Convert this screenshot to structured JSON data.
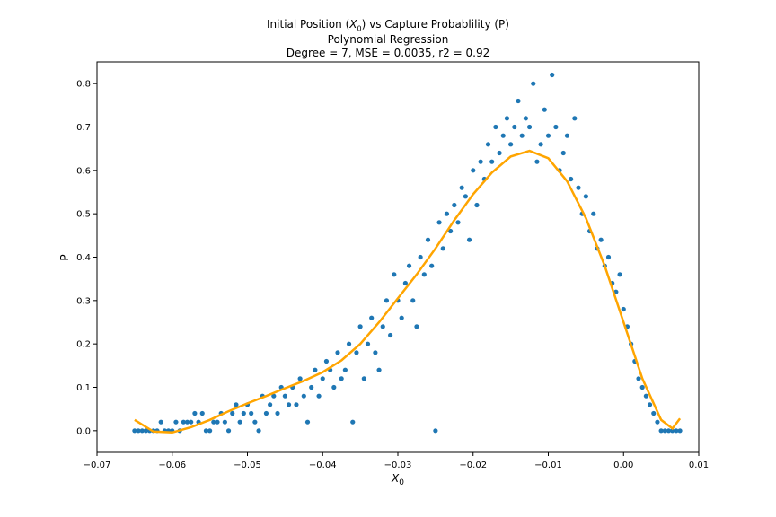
{
  "chart_data": {
    "type": "scatter",
    "title_lines": {
      "line1_prefix": "Initial Position (",
      "line1_var": "X",
      "line1_sub": "0",
      "line1_suffix": ") vs Capture Probablility (P)",
      "line2": "Polynomial Regression",
      "line3": "Degree = 7, MSE = 0.0035, r2 = 0.92"
    },
    "xlabel": {
      "var": "X",
      "sub": "0"
    },
    "ylabel": "P",
    "xlim": [
      -0.07,
      0.01
    ],
    "ylim": [
      -0.05,
      0.85
    ],
    "xticks": [
      -0.07,
      -0.06,
      -0.05,
      -0.04,
      -0.03,
      -0.02,
      -0.01,
      0.0,
      0.01
    ],
    "xtick_labels": [
      "−0.07",
      "−0.06",
      "−0.05",
      "−0.04",
      "−0.03",
      "−0.02",
      "−0.01",
      "0.00",
      "0.01"
    ],
    "yticks": [
      0.0,
      0.1,
      0.2,
      0.3,
      0.4,
      0.5,
      0.6,
      0.7,
      0.8
    ],
    "ytick_labels": [
      "0.0",
      "0.1",
      "0.2",
      "0.3",
      "0.4",
      "0.5",
      "0.6",
      "0.7",
      "0.8"
    ],
    "grid": false,
    "series": [
      {
        "kind": "scatter",
        "color": "#1f77b4",
        "points": [
          [
            -0.065,
            0.0
          ],
          [
            -0.0645,
            0.0
          ],
          [
            -0.064,
            0.0
          ],
          [
            -0.0635,
            0.0
          ],
          [
            -0.063,
            0.0
          ],
          [
            -0.0625,
            0.0
          ],
          [
            -0.062,
            0.0
          ],
          [
            -0.0615,
            0.02
          ],
          [
            -0.061,
            0.0
          ],
          [
            -0.0605,
            0.0
          ],
          [
            -0.06,
            0.0
          ],
          [
            -0.0595,
            0.02
          ],
          [
            -0.059,
            0.0
          ],
          [
            -0.0585,
            0.02
          ],
          [
            -0.058,
            0.02
          ],
          [
            -0.0575,
            0.02
          ],
          [
            -0.057,
            0.04
          ],
          [
            -0.0565,
            0.02
          ],
          [
            -0.056,
            0.04
          ],
          [
            -0.0555,
            0.0
          ],
          [
            -0.055,
            0.0
          ],
          [
            -0.0545,
            0.02
          ],
          [
            -0.054,
            0.02
          ],
          [
            -0.0535,
            0.04
          ],
          [
            -0.053,
            0.02
          ],
          [
            -0.0525,
            0.0
          ],
          [
            -0.052,
            0.04
          ],
          [
            -0.0515,
            0.06
          ],
          [
            -0.051,
            0.02
          ],
          [
            -0.0505,
            0.04
          ],
          [
            -0.05,
            0.06
          ],
          [
            -0.0495,
            0.04
          ],
          [
            -0.049,
            0.02
          ],
          [
            -0.0485,
            0.0
          ],
          [
            -0.048,
            0.08
          ],
          [
            -0.0475,
            0.04
          ],
          [
            -0.047,
            0.06
          ],
          [
            -0.0465,
            0.08
          ],
          [
            -0.046,
            0.04
          ],
          [
            -0.0455,
            0.1
          ],
          [
            -0.045,
            0.08
          ],
          [
            -0.0445,
            0.06
          ],
          [
            -0.044,
            0.1
          ],
          [
            -0.0435,
            0.06
          ],
          [
            -0.043,
            0.12
          ],
          [
            -0.0425,
            0.08
          ],
          [
            -0.042,
            0.02
          ],
          [
            -0.0415,
            0.1
          ],
          [
            -0.041,
            0.14
          ],
          [
            -0.0405,
            0.08
          ],
          [
            -0.04,
            0.12
          ],
          [
            -0.0395,
            0.16
          ],
          [
            -0.039,
            0.14
          ],
          [
            -0.0385,
            0.1
          ],
          [
            -0.038,
            0.18
          ],
          [
            -0.0375,
            0.12
          ],
          [
            -0.037,
            0.14
          ],
          [
            -0.0365,
            0.2
          ],
          [
            -0.036,
            0.02
          ],
          [
            -0.0355,
            0.18
          ],
          [
            -0.035,
            0.24
          ],
          [
            -0.0345,
            0.12
          ],
          [
            -0.034,
            0.2
          ],
          [
            -0.0335,
            0.26
          ],
          [
            -0.033,
            0.18
          ],
          [
            -0.0325,
            0.14
          ],
          [
            -0.032,
            0.24
          ],
          [
            -0.0315,
            0.3
          ],
          [
            -0.031,
            0.22
          ],
          [
            -0.0305,
            0.36
          ],
          [
            -0.03,
            0.3
          ],
          [
            -0.0295,
            0.26
          ],
          [
            -0.029,
            0.34
          ],
          [
            -0.0285,
            0.38
          ],
          [
            -0.028,
            0.3
          ],
          [
            -0.0275,
            0.24
          ],
          [
            -0.027,
            0.4
          ],
          [
            -0.0265,
            0.36
          ],
          [
            -0.026,
            0.44
          ],
          [
            -0.0255,
            0.38
          ],
          [
            -0.025,
            0.0
          ],
          [
            -0.0245,
            0.48
          ],
          [
            -0.024,
            0.42
          ],
          [
            -0.0235,
            0.5
          ],
          [
            -0.023,
            0.46
          ],
          [
            -0.0225,
            0.52
          ],
          [
            -0.022,
            0.48
          ],
          [
            -0.0215,
            0.56
          ],
          [
            -0.021,
            0.54
          ],
          [
            -0.0205,
            0.44
          ],
          [
            -0.02,
            0.6
          ],
          [
            -0.0195,
            0.52
          ],
          [
            -0.019,
            0.62
          ],
          [
            -0.0185,
            0.58
          ],
          [
            -0.018,
            0.66
          ],
          [
            -0.0175,
            0.62
          ],
          [
            -0.017,
            0.7
          ],
          [
            -0.0165,
            0.64
          ],
          [
            -0.016,
            0.68
          ],
          [
            -0.0155,
            0.72
          ],
          [
            -0.015,
            0.66
          ],
          [
            -0.0145,
            0.7
          ],
          [
            -0.014,
            0.76
          ],
          [
            -0.0135,
            0.68
          ],
          [
            -0.013,
            0.72
          ],
          [
            -0.0125,
            0.7
          ],
          [
            -0.012,
            0.8
          ],
          [
            -0.0115,
            0.62
          ],
          [
            -0.011,
            0.66
          ],
          [
            -0.0105,
            0.74
          ],
          [
            -0.01,
            0.68
          ],
          [
            -0.0095,
            0.82
          ],
          [
            -0.009,
            0.7
          ],
          [
            -0.0085,
            0.6
          ],
          [
            -0.008,
            0.64
          ],
          [
            -0.0075,
            0.68
          ],
          [
            -0.007,
            0.58
          ],
          [
            -0.0065,
            0.72
          ],
          [
            -0.006,
            0.56
          ],
          [
            -0.0055,
            0.5
          ],
          [
            -0.005,
            0.54
          ],
          [
            -0.0045,
            0.46
          ],
          [
            -0.004,
            0.5
          ],
          [
            -0.0035,
            0.42
          ],
          [
            -0.003,
            0.44
          ],
          [
            -0.0025,
            0.38
          ],
          [
            -0.002,
            0.4
          ],
          [
            -0.0015,
            0.34
          ],
          [
            -0.001,
            0.32
          ],
          [
            -0.0005,
            0.36
          ],
          [
            0.0,
            0.28
          ],
          [
            0.0005,
            0.24
          ],
          [
            0.001,
            0.2
          ],
          [
            0.0015,
            0.16
          ],
          [
            0.002,
            0.12
          ],
          [
            0.0025,
            0.1
          ],
          [
            0.003,
            0.08
          ],
          [
            0.0035,
            0.06
          ],
          [
            0.004,
            0.04
          ],
          [
            0.0045,
            0.02
          ],
          [
            0.005,
            0.0
          ],
          [
            0.0055,
            0.0
          ],
          [
            0.006,
            0.0
          ],
          [
            0.0065,
            0.0
          ],
          [
            0.007,
            0.0
          ],
          [
            0.0075,
            0.0
          ]
        ]
      },
      {
        "kind": "line",
        "color": "#ffa500",
        "x": [
          -0.065,
          -0.0625,
          -0.06,
          -0.0575,
          -0.055,
          -0.0525,
          -0.05,
          -0.0475,
          -0.045,
          -0.0425,
          -0.04,
          -0.0375,
          -0.035,
          -0.0325,
          -0.03,
          -0.0275,
          -0.025,
          -0.0225,
          -0.02,
          -0.0175,
          -0.015,
          -0.0125,
          -0.01,
          -0.0075,
          -0.005,
          -0.0025,
          0.0,
          0.0025,
          0.005,
          0.0065,
          0.0075
        ],
        "y": [
          0.025,
          -0.002,
          -0.004,
          0.008,
          0.025,
          0.045,
          0.063,
          0.08,
          0.098,
          0.115,
          0.135,
          0.162,
          0.2,
          0.25,
          0.305,
          0.36,
          0.42,
          0.485,
          0.545,
          0.595,
          0.632,
          0.645,
          0.628,
          0.575,
          0.49,
          0.38,
          0.25,
          0.12,
          0.025,
          0.005,
          0.028
        ]
      }
    ]
  }
}
